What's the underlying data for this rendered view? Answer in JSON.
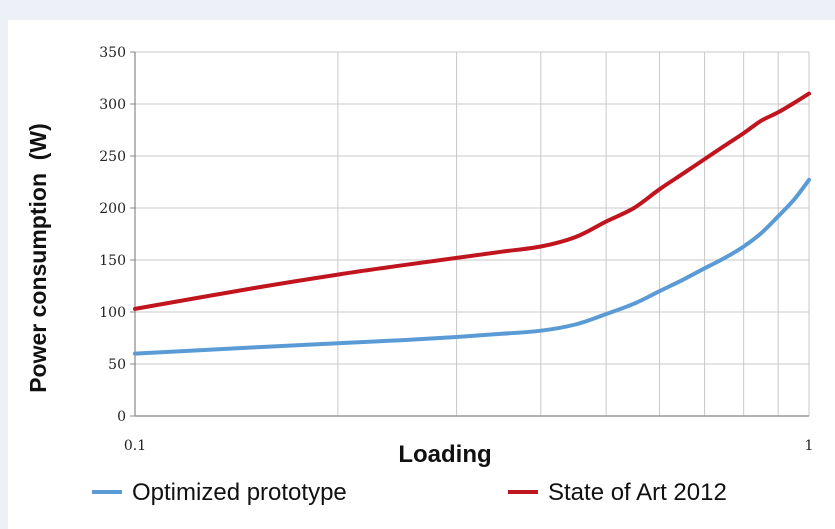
{
  "chart_data": {
    "type": "line",
    "title": "",
    "xlabel": "Loading",
    "ylabel": "Power consumption  (W)",
    "xscale": "log",
    "xlim": [
      0.1,
      1
    ],
    "ylim": [
      0,
      350
    ],
    "grid": true,
    "legend_position": "bottom",
    "x_tick_labels": [
      "0.1",
      "1"
    ],
    "y_tick_labels": [
      "0",
      "50",
      "100",
      "150",
      "200",
      "250",
      "300",
      "350"
    ],
    "series": [
      {
        "name": "Optimized prototype",
        "color": "#5b9bd5",
        "x": [
          0.1,
          0.15,
          0.2,
          0.25,
          0.3,
          0.35,
          0.4,
          0.45,
          0.5,
          0.55,
          0.6,
          0.65,
          0.7,
          0.75,
          0.8,
          0.85,
          0.9,
          0.95,
          1.0
        ],
        "y": [
          60,
          66,
          70,
          73,
          76,
          79,
          82,
          88,
          98,
          108,
          120,
          131,
          142,
          152,
          163,
          176,
          192,
          208,
          227
        ]
      },
      {
        "name": "State of Art 2012",
        "color": "#c0141f",
        "x": [
          0.1,
          0.15,
          0.2,
          0.25,
          0.3,
          0.35,
          0.4,
          0.45,
          0.5,
          0.55,
          0.6,
          0.65,
          0.7,
          0.75,
          0.8,
          0.85,
          0.9,
          0.95,
          1.0
        ],
        "y": [
          103,
          123,
          136,
          145,
          152,
          158,
          163,
          172,
          187,
          200,
          218,
          233,
          247,
          260,
          272,
          284,
          292,
          301,
          310
        ]
      }
    ]
  }
}
